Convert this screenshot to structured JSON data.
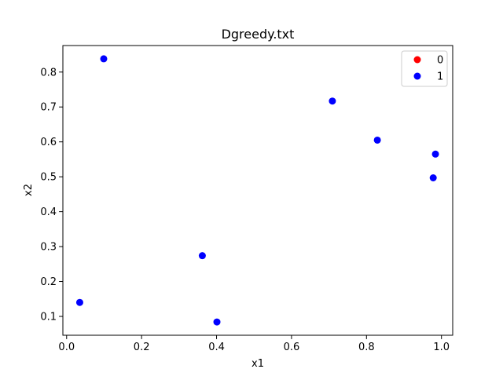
{
  "chart_data": {
    "type": "scatter",
    "title": "Dgreedy.txt",
    "xlabel": "x1",
    "ylabel": "x2",
    "xlim": [
      -0.01,
      1.03
    ],
    "ylim": [
      0.046,
      0.876
    ],
    "x_ticks": [
      0.0,
      0.2,
      0.4,
      0.6,
      0.8,
      1.0
    ],
    "x_tick_labels": [
      "0.0",
      "0.2",
      "0.4",
      "0.6",
      "0.8",
      "1.0"
    ],
    "y_ticks": [
      0.1,
      0.2,
      0.3,
      0.4,
      0.5,
      0.6,
      0.7,
      0.8
    ],
    "y_tick_labels": [
      "0.1",
      "0.2",
      "0.3",
      "0.4",
      "0.5",
      "0.6",
      "0.7",
      "0.8"
    ],
    "grid": false,
    "legend_position": "top-right",
    "series": [
      {
        "name": "0",
        "color": "#ff0000",
        "points": []
      },
      {
        "name": "1",
        "color": "#0000ff",
        "points": [
          {
            "x": 0.099,
            "y": 0.838
          },
          {
            "x": 0.709,
            "y": 0.717
          },
          {
            "x": 0.829,
            "y": 0.605
          },
          {
            "x": 0.984,
            "y": 0.565
          },
          {
            "x": 0.978,
            "y": 0.497
          },
          {
            "x": 0.362,
            "y": 0.274
          },
          {
            "x": 0.035,
            "y": 0.14
          },
          {
            "x": 0.401,
            "y": 0.084
          }
        ]
      }
    ]
  }
}
